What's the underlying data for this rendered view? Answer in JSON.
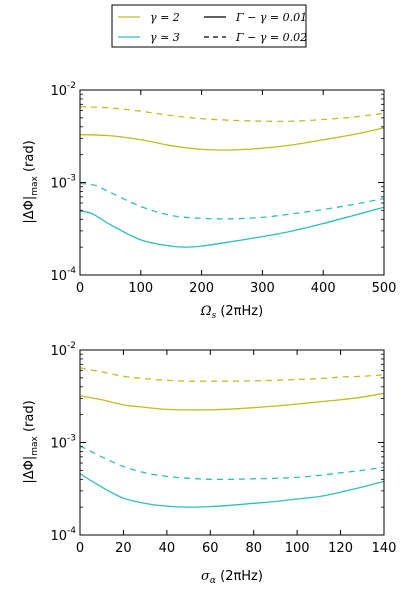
{
  "colors": {
    "gamma2": "#c0be1a",
    "gamma3": "#2bbfbf",
    "axis": "#000000"
  },
  "legend": {
    "gamma2": "γ = 2",
    "gamma3": "γ ≃ 3",
    "solid": "Γ − γ = 0.01",
    "dashed": "Γ − γ = 0.02"
  },
  "chart_data": [
    {
      "type": "line",
      "xlabel": "Ω_s (2πHz)",
      "ylabel": "|ΔΦ|_max (rad)",
      "xlim": [
        0,
        500
      ],
      "ylim": [
        0.0001,
        0.01
      ],
      "yscale": "log",
      "xticks": [
        0,
        100,
        200,
        300,
        400,
        500
      ],
      "xtick_labels": [
        "0",
        "100",
        "200",
        "300",
        "400",
        "500"
      ],
      "ytick_labels": [
        {
          "base": "10",
          "exp": "-4"
        },
        {
          "base": "10",
          "exp": "-3"
        },
        {
          "base": "10",
          "exp": "-2"
        }
      ],
      "series": [
        {
          "key": "g2_s",
          "color": "gamma2",
          "style": "solid",
          "x": [
            0,
            50,
            100,
            150,
            200,
            250,
            300,
            350,
            400,
            450,
            500
          ],
          "y": [
            0.0033,
            0.0032,
            0.0029,
            0.0025,
            0.00228,
            0.00225,
            0.00235,
            0.00255,
            0.0029,
            0.0033,
            0.0039
          ]
        },
        {
          "key": "g2_d",
          "color": "gamma2",
          "style": "dashed",
          "x": [
            0,
            50,
            100,
            150,
            200,
            250,
            300,
            350,
            400,
            450,
            500
          ],
          "y": [
            0.0066,
            0.0064,
            0.0059,
            0.0053,
            0.0049,
            0.0047,
            0.0046,
            0.0046,
            0.0048,
            0.0051,
            0.0056
          ]
        },
        {
          "key": "g3_s",
          "color": "gamma3",
          "style": "solid",
          "x": [
            0,
            20,
            50,
            100,
            150,
            175,
            200,
            250,
            300,
            350,
            400,
            450,
            500
          ],
          "y": [
            0.00049,
            0.00046,
            0.00035,
            0.00024,
            0.000205,
            0.0002,
            0.000205,
            0.00023,
            0.00026,
            0.0003,
            0.00036,
            0.00044,
            0.00054
          ]
        },
        {
          "key": "g3_d",
          "color": "gamma3",
          "style": "dashed",
          "x": [
            0,
            25,
            50,
            100,
            150,
            200,
            250,
            300,
            350,
            400,
            450,
            500
          ],
          "y": [
            0.00098,
            0.00093,
            0.00078,
            0.00055,
            0.00044,
            0.00041,
            0.000405,
            0.00042,
            0.00046,
            0.00051,
            0.00058,
            0.00067
          ]
        }
      ]
    },
    {
      "type": "line",
      "xlabel": "σ_α (2πHz)",
      "ylabel": "|ΔΦ|_max (rad)",
      "xlim": [
        0,
        140
      ],
      "ylim": [
        0.0001,
        0.01
      ],
      "yscale": "log",
      "xticks": [
        0,
        20,
        40,
        60,
        80,
        100,
        120,
        140
      ],
      "xtick_labels": [
        "0",
        "20",
        "40",
        "60",
        "80",
        "100",
        "120",
        "140"
      ],
      "ytick_labels": [
        {
          "base": "10",
          "exp": "-4"
        },
        {
          "base": "10",
          "exp": "-3"
        },
        {
          "base": "10",
          "exp": "-2"
        }
      ],
      "series": [
        {
          "key": "g2_s",
          "color": "gamma2",
          "style": "solid",
          "x": [
            0,
            10,
            20,
            30,
            40,
            50,
            60,
            70,
            80,
            90,
            100,
            110,
            120,
            130,
            140
          ],
          "y": [
            0.0032,
            0.0029,
            0.00255,
            0.0024,
            0.00228,
            0.00225,
            0.00226,
            0.0023,
            0.00238,
            0.00248,
            0.0026,
            0.00275,
            0.0029,
            0.0031,
            0.0034
          ]
        },
        {
          "key": "g2_d",
          "color": "gamma2",
          "style": "dashed",
          "x": [
            0,
            10,
            20,
            30,
            40,
            50,
            60,
            70,
            80,
            90,
            100,
            110,
            120,
            130,
            140
          ],
          "y": [
            0.0064,
            0.0058,
            0.0052,
            0.0049,
            0.0047,
            0.0046,
            0.0046,
            0.0046,
            0.00465,
            0.0047,
            0.0048,
            0.0049,
            0.0051,
            0.0052,
            0.0054
          ]
        },
        {
          "key": "g3_s",
          "color": "gamma3",
          "style": "solid",
          "x": [
            0,
            10,
            20,
            30,
            40,
            50,
            60,
            70,
            80,
            90,
            100,
            110,
            120,
            130,
            140
          ],
          "y": [
            0.00046,
            0.00033,
            0.00025,
            0.00022,
            0.000205,
            0.0002,
            0.000203,
            0.00021,
            0.00022,
            0.00023,
            0.000245,
            0.00026,
            0.00029,
            0.00033,
            0.00038
          ]
        },
        {
          "key": "g3_d",
          "color": "gamma3",
          "style": "dashed",
          "x": [
            0,
            10,
            20,
            30,
            40,
            50,
            60,
            70,
            80,
            90,
            100,
            110,
            120,
            130,
            140
          ],
          "y": [
            0.00092,
            0.0007,
            0.00055,
            0.00047,
            0.00043,
            0.00041,
            0.0004,
            0.0004,
            0.000405,
            0.00041,
            0.00042,
            0.00044,
            0.00047,
            0.0005,
            0.00054
          ]
        }
      ]
    }
  ]
}
